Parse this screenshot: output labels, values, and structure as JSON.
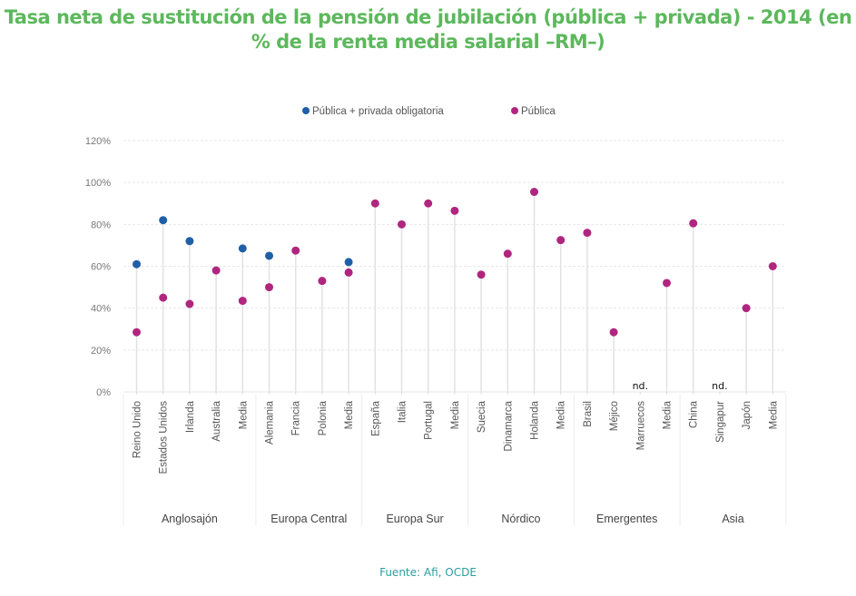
{
  "title": "Tasa neta de sustitución de la pensión de jubilación (pública + privada) - 2014 (en % de la renta media salarial –RM–)",
  "source": "Fuente: Afi, OCDE",
  "chart_data": {
    "type": "scatter",
    "subtype": "lollipop",
    "title": "Tasa neta de sustitución de la pensión de jubilación (pública + privada) - 2014 (en % de la renta media salarial –RM–)",
    "xlabel": "",
    "ylabel": "",
    "ylim": [
      0,
      120
    ],
    "yticks": [
      "0%",
      "20%",
      "40%",
      "60%",
      "80%",
      "100%",
      "120%"
    ],
    "ytick_values": [
      0,
      20,
      40,
      60,
      80,
      100,
      120
    ],
    "grid": true,
    "legend_position": "top-center",
    "groups": [
      {
        "name": "Anglosajón",
        "categories": [
          "Reino Unido",
          "Estados Unidos",
          "Irlanda",
          "Australia",
          "Media"
        ]
      },
      {
        "name": "Europa Central",
        "categories": [
          "Alemania",
          "Francia",
          "Polonia",
          "Media"
        ]
      },
      {
        "name": "Europa Sur",
        "categories": [
          "España",
          "Italia",
          "Portugal",
          "Media"
        ]
      },
      {
        "name": "Nórdico",
        "categories": [
          "Suecia",
          "Dinamarca",
          "Holanda",
          "Media"
        ]
      },
      {
        "name": "Emergentes",
        "categories": [
          "Brasil",
          "Méjico",
          "Marruecos",
          "Media"
        ]
      },
      {
        "name": "Asia",
        "categories": [
          "China",
          "Singapur",
          "Japón",
          "Media"
        ]
      }
    ],
    "categories": [
      "Reino Unido",
      "Estados Unidos",
      "Irlanda",
      "Australia",
      "Media",
      "Alemania",
      "Francia",
      "Polonia",
      "Media",
      "España",
      "Italia",
      "Portugal",
      "Media",
      "Suecia",
      "Dinamarca",
      "Holanda",
      "Media",
      "Brasil",
      "Méjico",
      "Marruecos",
      "Media",
      "China",
      "Singapur",
      "Japón",
      "Media"
    ],
    "series": [
      {
        "name": "Pública + privada obligatoria",
        "color": "#1f5fa8",
        "values": [
          61,
          82,
          72,
          null,
          68.5,
          65,
          null,
          null,
          62,
          null,
          null,
          null,
          null,
          null,
          null,
          null,
          null,
          null,
          null,
          null,
          null,
          null,
          null,
          null,
          null
        ]
      },
      {
        "name": "Pública",
        "color": "#b0267f",
        "values": [
          28.5,
          45,
          42,
          58,
          43.5,
          50,
          67.5,
          53,
          57,
          90,
          80,
          90,
          86.5,
          56,
          66,
          95.5,
          72.5,
          76,
          28.5,
          null,
          52,
          80.5,
          null,
          40,
          60
        ]
      }
    ],
    "annotations": [
      {
        "category": "Marruecos",
        "text": "nd."
      },
      {
        "category": "Singapur",
        "text": "nd."
      }
    ]
  }
}
